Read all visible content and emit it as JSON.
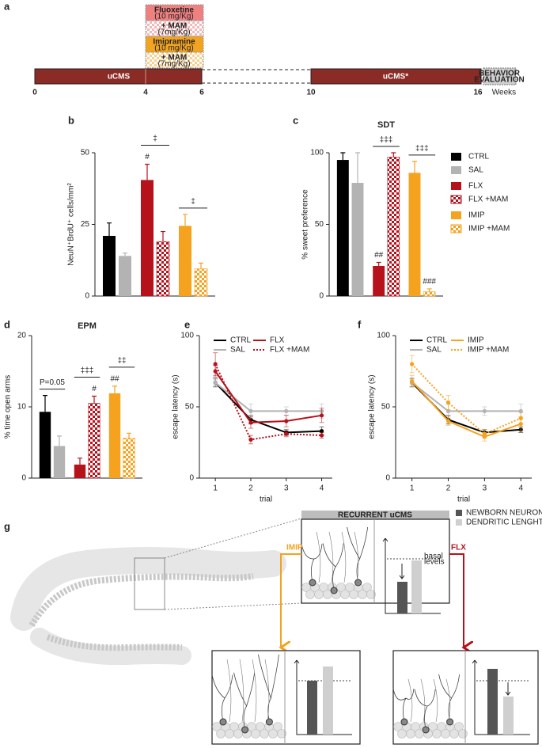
{
  "panel_a": {
    "label": "a",
    "treatments": [
      {
        "name": "Fluoxetine",
        "dose": "(10 mg/Kg)"
      },
      {
        "name": "+ MAM",
        "dose": "(7mg/Kg)"
      },
      {
        "name": "Imipramine",
        "dose": "(10 mg/Kg)"
      },
      {
        "name": "+ MAM",
        "dose": "(7mg/Kg)"
      }
    ],
    "phases": [
      "uCMS",
      "uCMS*"
    ],
    "evaluation": [
      "BEHAVIOR",
      "EVALUATION"
    ],
    "weeks": [
      0,
      4,
      6,
      10,
      16
    ],
    "unit": "Weeks"
  },
  "chart_data": [
    {
      "type": "bar",
      "panel": "b",
      "ylabel": "NeuN⁺BrdU⁺ cells/mm²",
      "categories": [
        null,
        null,
        null,
        null,
        null,
        null
      ],
      "values": [
        21,
        14,
        40.5,
        19,
        24.5,
        9.5
      ],
      "errors": [
        4.5,
        1,
        5.5,
        3.5,
        4,
        2
      ],
      "colors": [
        "#000000",
        "#b3b3b3",
        "#b5121b",
        "#b5121b",
        "#f5a21e",
        "#f5a21e"
      ],
      "hatch": [
        false,
        false,
        false,
        true,
        false,
        true
      ],
      "bar_annotations": [
        null,
        null,
        "#",
        null,
        null,
        null
      ],
      "pair_annotations": [
        null,
        "‡",
        "‡"
      ],
      "ylim": [
        0,
        50
      ],
      "yticks": [
        0,
        25,
        50
      ]
    },
    {
      "type": "bar",
      "panel": "c",
      "title": "SDT",
      "ylabel": "% sweet preference",
      "categories": [
        null,
        null,
        null,
        null,
        null,
        null
      ],
      "values": [
        95,
        79,
        21,
        97,
        86,
        3
      ],
      "errors": [
        5,
        21,
        2.5,
        3,
        8,
        2
      ],
      "colors": [
        "#000000",
        "#b3b3b3",
        "#b5121b",
        "#b5121b",
        "#f5a21e",
        "#f5a21e"
      ],
      "hatch": [
        false,
        false,
        false,
        true,
        false,
        true
      ],
      "legend": [
        "CTRL",
        "SAL",
        "FLX",
        "FLX +MAM",
        "IMIP",
        "IMIP +MAM"
      ],
      "bar_annotations": [
        null,
        null,
        "##",
        null,
        null,
        "###"
      ],
      "pair_annotations": [
        null,
        "‡‡‡",
        "‡‡‡"
      ],
      "ylim": [
        0,
        100
      ],
      "yticks": [
        0,
        50,
        100
      ]
    },
    {
      "type": "bar",
      "panel": "d",
      "title": "EPM",
      "ylabel": "% time open arms",
      "categories": [
        null,
        null,
        null,
        null,
        null,
        null
      ],
      "values": [
        9.3,
        4.5,
        1.9,
        10.5,
        11.9,
        5.6
      ],
      "errors": [
        2.3,
        1.4,
        0.9,
        1,
        1,
        0.7
      ],
      "colors": [
        "#000000",
        "#b3b3b3",
        "#b5121b",
        "#b5121b",
        "#f5a21e",
        "#f5a21e"
      ],
      "hatch": [
        false,
        false,
        false,
        true,
        false,
        true
      ],
      "bar_annotations": [
        null,
        null,
        null,
        "#",
        "##",
        null
      ],
      "pair_annotations": [
        "P=0.05",
        "‡‡‡",
        "‡‡"
      ],
      "ylim": [
        0,
        20
      ],
      "yticks": [
        0,
        10,
        20
      ]
    },
    {
      "type": "line",
      "panel": "e",
      "xlabel": "trial",
      "ylabel": "escape latency (s)",
      "x": [
        1,
        2,
        3,
        4
      ],
      "series": [
        {
          "name": "CTRL",
          "color": "#000000",
          "dotted": false,
          "values": [
            67,
            41,
            32,
            33
          ],
          "errors": [
            3,
            3,
            2,
            3
          ]
        },
        {
          "name": "SAL",
          "color": "#b3b3b3",
          "dotted": false,
          "values": [
            67,
            47,
            47,
            47
          ],
          "errors": [
            2,
            5,
            3,
            5
          ]
        },
        {
          "name": "FLX",
          "color": "#b5121b",
          "dotted": false,
          "values": [
            75,
            39,
            40,
            44
          ],
          "errors": [
            4,
            4,
            4,
            5
          ]
        },
        {
          "name": "FLX +MAM",
          "color": "#b5121b",
          "dotted": true,
          "values": [
            80,
            27,
            31,
            30
          ],
          "errors": [
            8,
            3,
            2,
            2
          ]
        }
      ],
      "xlim": [
        0.55,
        4.3
      ],
      "xticks": [
        1,
        2,
        3,
        4
      ],
      "ylim": [
        0,
        100
      ],
      "yticks": [
        0,
        50,
        100
      ]
    },
    {
      "type": "line",
      "panel": "f",
      "xlabel": "trial",
      "ylabel": "escape latency (s)",
      "x": [
        1,
        2,
        3,
        4
      ],
      "series": [
        {
          "name": "CTRL",
          "color": "#000000",
          "dotted": false,
          "values": [
            67,
            41,
            32,
            34
          ],
          "errors": [
            3,
            3,
            2,
            2
          ]
        },
        {
          "name": "SAL",
          "color": "#b3b3b3",
          "dotted": false,
          "values": [
            67,
            47,
            47,
            47
          ],
          "errors": [
            2,
            5,
            3,
            5
          ]
        },
        {
          "name": "IMIP",
          "color": "#f5a21e",
          "dotted": false,
          "values": [
            68,
            40,
            29,
            38
          ],
          "errors": [
            4,
            3,
            3,
            5
          ]
        },
        {
          "name": "IMIP +MAM",
          "color": "#f5a21e",
          "dotted": true,
          "values": [
            80,
            53,
            31,
            42
          ],
          "errors": [
            6,
            5,
            3,
            4
          ]
        }
      ],
      "xlim": [
        0.55,
        4.3
      ],
      "xticks": [
        1,
        2,
        3,
        4
      ],
      "ylim": [
        0,
        100
      ],
      "yticks": [
        0,
        50,
        100
      ]
    }
  ],
  "panel_g": {
    "label": "g",
    "header": "RECURRENT uCMS",
    "legend": [
      "NEWBORN NEURONS",
      "DENDRITIC LENGHT"
    ],
    "basal": [
      "basal",
      "levels"
    ],
    "arrows": [
      "IMIP",
      "FLX"
    ]
  }
}
